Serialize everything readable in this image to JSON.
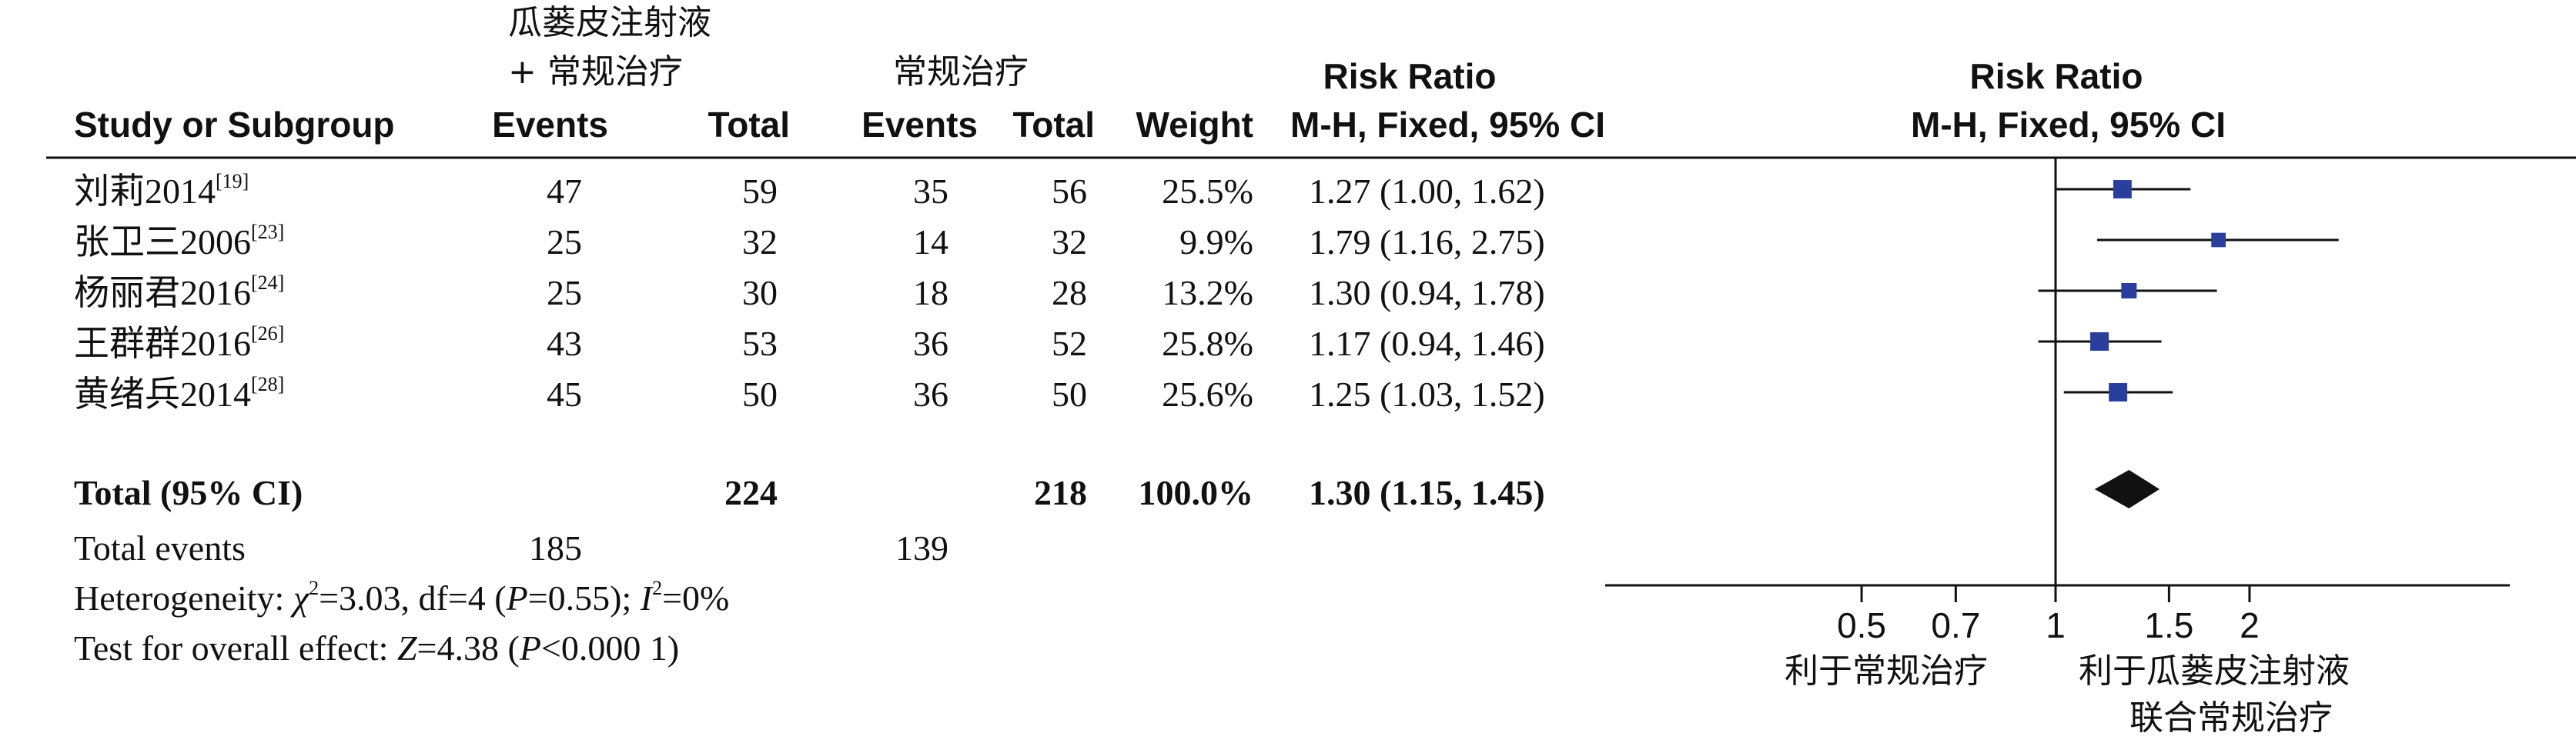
{
  "header": {
    "group1_title_line1": "瓜蒌皮注射液",
    "group1_title_line2": "+ 常规治疗",
    "group2_title": "常规治疗",
    "col_study": "Study or Subgroup",
    "col_events1": "Events",
    "col_total1": "Total",
    "col_events2": "Events",
    "col_total2": "Total",
    "col_weight": "Weight",
    "col_rr_title": "Risk Ratio",
    "col_rr_method": "M-H, Fixed, 95% CI",
    "plot_title": "Risk Ratio",
    "plot_method": "M-H, Fixed, 95% CI"
  },
  "studies": [
    {
      "name": "刘莉2014",
      "ref": "[19]",
      "events1": "47",
      "total1": "59",
      "events2": "35",
      "total2": "56",
      "weight": "25.5%",
      "ci_text": "1.27 (1.00, 1.62)"
    },
    {
      "name": "张卫三2006",
      "ref": "[23]",
      "events1": "25",
      "total1": "32",
      "events2": "14",
      "total2": "32",
      "weight": "9.9%",
      "ci_text": "1.79 (1.16, 2.75)"
    },
    {
      "name": "杨丽君2016",
      "ref": "[24]",
      "events1": "25",
      "total1": "30",
      "events2": "18",
      "total2": "28",
      "weight": "13.2%",
      "ci_text": "1.30 (0.94, 1.78)"
    },
    {
      "name": "王群群2016",
      "ref": "[26]",
      "events1": "43",
      "total1": "53",
      "events2": "36",
      "total2": "52",
      "weight": "25.8%",
      "ci_text": "1.17 (0.94, 1.46)"
    },
    {
      "name": "黄绪兵2014",
      "ref": "[28]",
      "events1": "45",
      "total1": "50",
      "events2": "36",
      "total2": "50",
      "weight": "25.6%",
      "ci_text": "1.25 (1.03, 1.52)"
    }
  ],
  "total": {
    "label": "Total (95% CI)",
    "total1": "224",
    "total2": "218",
    "weight": "100.0%",
    "ci_text": "1.30 (1.15, 1.45)"
  },
  "total_events": {
    "label": "Total events",
    "events1": "185",
    "events2": "139"
  },
  "heterogeneity": {
    "prefix": "Heterogeneity: ",
    "chi_symbol": "χ",
    "chi_value": "=3.03, df=4 (",
    "p_symbol": "P",
    "p_value": "=0.55); ",
    "i_symbol": "I",
    "i_value": "=0%"
  },
  "overall_effect": {
    "prefix": "Test for overall effect: ",
    "z_symbol": "Z",
    "z_value": "=4.38 (",
    "p_symbol": "P",
    "p_value": "<0.000 1)"
  },
  "axis": {
    "favours_left": "利于常规治疗",
    "favours_right_line1": "利于瓜蒌皮注射液",
    "favours_right_line2": "联合常规治疗"
  },
  "chart_data": {
    "type": "scatter",
    "title": "Risk Ratio",
    "scale": "log",
    "xlim": [
      0.2,
      5
    ],
    "ticks": [
      0.5,
      0.7,
      1,
      1.5,
      2
    ],
    "tick_labels": [
      "0.5",
      "0.7",
      "1",
      "1.5",
      "2"
    ],
    "reference_line": 1,
    "studies": [
      {
        "name": "刘莉2014",
        "rr": 1.27,
        "lower": 1.0,
        "upper": 1.62,
        "weight": 25.5
      },
      {
        "name": "张卫三2006",
        "rr": 1.79,
        "lower": 1.16,
        "upper": 2.75,
        "weight": 9.9
      },
      {
        "name": "杨丽君2016",
        "rr": 1.3,
        "lower": 0.94,
        "upper": 1.78,
        "weight": 13.2
      },
      {
        "name": "王群群2016",
        "rr": 1.17,
        "lower": 0.94,
        "upper": 1.46,
        "weight": 25.8
      },
      {
        "name": "黄绪兵2014",
        "rr": 1.25,
        "lower": 1.03,
        "upper": 1.52,
        "weight": 25.6
      }
    ],
    "pooled": {
      "rr": 1.3,
      "lower": 1.15,
      "upper": 1.45
    },
    "marker_color": "#2a3e9c",
    "diamond_color": "#111111"
  }
}
